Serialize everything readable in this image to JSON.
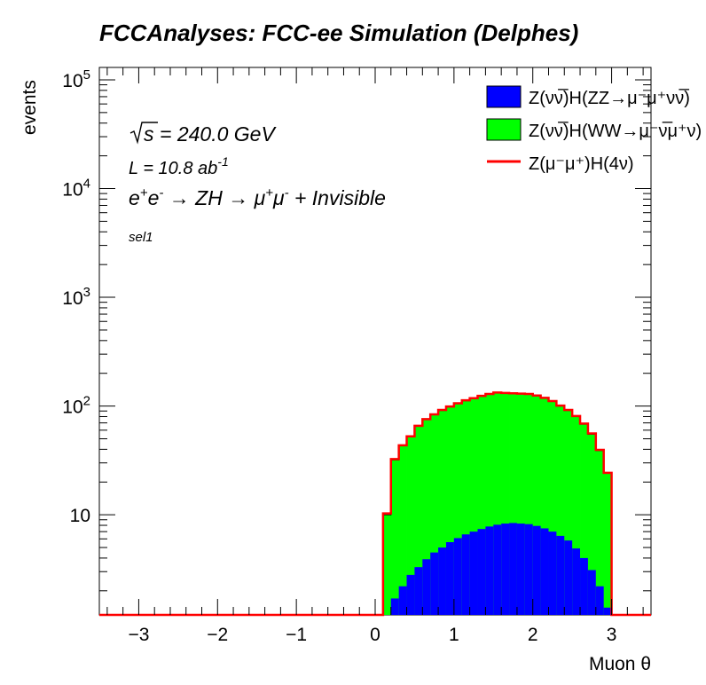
{
  "chart_data": {
    "type": "histogram-stacked",
    "title": "FCCAnalyses: FCC-ee Simulation (Delphes)",
    "xlabel": "Muon θ",
    "ylabel": "events",
    "xlim": [
      -3.5,
      3.5
    ],
    "ylim": [
      1.2,
      130000
    ],
    "log_y": true,
    "x_ticks": [
      "−3",
      "−2",
      "−1",
      "0",
      "1",
      "2",
      "3"
    ],
    "x_tick_values": [
      -3,
      -2,
      -1,
      0,
      1,
      2,
      3
    ],
    "y_ticks": [
      {
        "value": 10,
        "base": "10",
        "exp": ""
      },
      {
        "value": 100,
        "base": "10",
        "exp": "2"
      },
      {
        "value": 1000,
        "base": "10",
        "exp": "3"
      },
      {
        "value": 10000,
        "base": "10",
        "exp": "4"
      },
      {
        "value": 100000,
        "base": "10",
        "exp": "5"
      }
    ],
    "bin_range": [
      0.1,
      3.0
    ],
    "bin_count": 29,
    "bin_centers": [
      0.15,
      0.25,
      0.35,
      0.45,
      0.55,
      0.65,
      0.75,
      0.85,
      0.95,
      1.05,
      1.15,
      1.25,
      1.35,
      1.45,
      1.55,
      1.65,
      1.75,
      1.85,
      1.95,
      2.05,
      2.15,
      2.25,
      2.35,
      2.45,
      2.55,
      2.65,
      2.75,
      2.85,
      2.95
    ],
    "series": [
      {
        "name": "Z(νν̅)H(ZZ→μ⁻μ⁺νν̅)",
        "color": "#0000ff",
        "values": [
          0.9,
          1.7,
          2.2,
          2.8,
          3.3,
          3.9,
          4.5,
          5.0,
          5.6,
          6.1,
          6.6,
          7.0,
          7.4,
          7.8,
          8.1,
          8.3,
          8.4,
          8.3,
          8.2,
          7.9,
          7.5,
          7.0,
          6.4,
          5.8,
          4.9,
          4.0,
          3.1,
          2.2,
          1.4
        ]
      },
      {
        "name": "Z(νν̅)H(WW→μ⁻ν̅μ⁺ν)",
        "color": "#00ff00",
        "values": [
          9.1,
          30.3,
          40.8,
          49.2,
          61.7,
          71.1,
          78.5,
          86.0,
          92.4,
          98.9,
          105.4,
          110.0,
          115.6,
          120.2,
          123.9,
          122.7,
          121.6,
          120.7,
          119.8,
          116.1,
          110.5,
          103.0,
          93.6,
          85.2,
          75.1,
          64.0,
          51.9,
          36.8,
          22.6
        ]
      }
    ],
    "overlay": {
      "name": "Z(μ⁻μ⁺)H(4ν)",
      "color": "#ff0000",
      "values": [
        10.3,
        32.5,
        43.5,
        52.6,
        65.8,
        75.8,
        83.8,
        92.0,
        99.0,
        106.0,
        113.0,
        118.0,
        124.0,
        129.0,
        133.0,
        132.0,
        131.0,
        130.0,
        129.0,
        125.0,
        119.0,
        111.0,
        101.0,
        92.0,
        81.0,
        69.0,
        56.0,
        39.5,
        24.3
      ],
      "baseline": 1.2
    },
    "legend_position": "top-right",
    "annotations": {
      "sqrt_s": "= 240.0 GeV",
      "lumi": "L = 10.8 ab",
      "lumi_exp": "-1",
      "process": "ZH",
      "process_extra": "+ Invisible",
      "selection": "sel1"
    }
  }
}
